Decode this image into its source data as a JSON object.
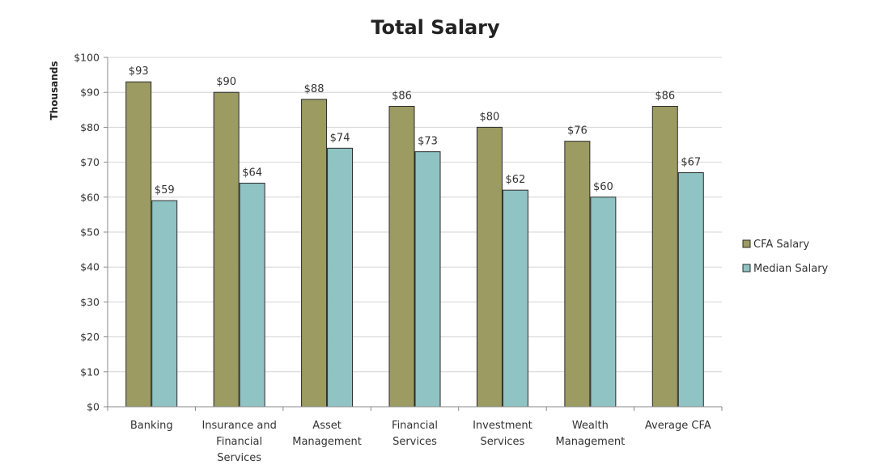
{
  "chart_data": {
    "type": "bar",
    "title": "Total Salary",
    "xlabel": "",
    "ylabel": "Thousands",
    "ylim": [
      0,
      100
    ],
    "ytick_step": 10,
    "ytick_prefix": "$",
    "grid": true,
    "legend_position": "right",
    "categories": [
      [
        "Banking"
      ],
      [
        "Insurance and",
        "Financial",
        "Services"
      ],
      [
        "Asset",
        "Management"
      ],
      [
        "Financial",
        "Services"
      ],
      [
        "Investment",
        "Services"
      ],
      [
        "Wealth",
        "Management"
      ],
      [
        "Average CFA"
      ]
    ],
    "series": [
      {
        "name": "CFA Salary",
        "color": "#9b9b62",
        "values": [
          93,
          90,
          88,
          86,
          80,
          76,
          86
        ]
      },
      {
        "name": "Median Salary",
        "color": "#8fc3c4",
        "values": [
          59,
          64,
          74,
          73,
          62,
          60,
          67
        ]
      }
    ],
    "data_labels": [
      [
        "$93",
        "$90",
        "$88",
        "$86",
        "$80",
        "$76",
        "$86"
      ],
      [
        "$59",
        "$64",
        "$74",
        "$73",
        "$62",
        "$60",
        "$67"
      ]
    ],
    "ytick_labels": [
      "$0",
      "$10",
      "$20",
      "$30",
      "$40",
      "$50",
      "$60",
      "$70",
      "$80",
      "$90",
      "$100"
    ]
  }
}
